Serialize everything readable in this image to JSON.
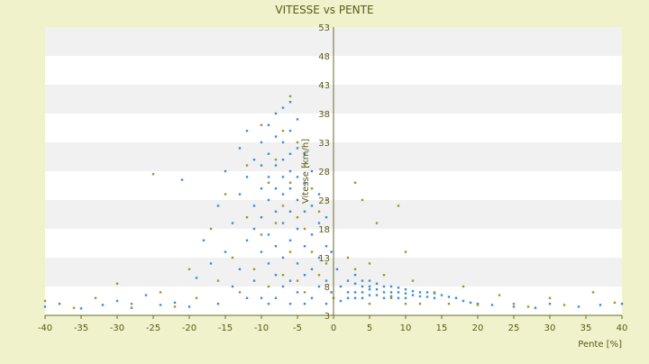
{
  "chart_data": {
    "type": "scatter",
    "title": "VITESSE vs PENTE",
    "xlabel": "Pente [%]",
    "ylabel": "Vitesse [km/h]",
    "xlim": [
      -40,
      40
    ],
    "ylim": [
      3,
      53
    ],
    "x_ticks": [
      -40,
      -35,
      -30,
      -25,
      -20,
      -15,
      -10,
      -5,
      0,
      5,
      10,
      15,
      20,
      25,
      30,
      35,
      40
    ],
    "y_ticks": [
      3,
      8,
      13,
      18,
      23,
      28,
      33,
      38,
      43,
      48,
      53
    ],
    "grid": "horizontal bands",
    "legend": "none",
    "colors": {
      "background": "#eff2cb",
      "plot_band_light": "#ffffff",
      "plot_band_dark": "#f1f1f1",
      "text": "#5a5a1a",
      "axis": "#6b6b2a",
      "series_blue": "#3a8fd8",
      "series_olive": "#9a9a2a"
    },
    "series": [
      {
        "color": "#3a8fd8",
        "points": [
          [
            -40,
            4.5
          ],
          [
            -38,
            5
          ],
          [
            -35,
            4.2
          ],
          [
            -32,
            4.8
          ],
          [
            -30,
            5.5
          ],
          [
            -28,
            4.3
          ],
          [
            -26,
            6.5
          ],
          [
            -24,
            4.8
          ],
          [
            -22,
            5.2
          ],
          [
            -21,
            26.5
          ],
          [
            -20,
            4.5
          ],
          [
            -19,
            9.5
          ],
          [
            -18,
            16
          ],
          [
            -17,
            12
          ],
          [
            -16,
            22
          ],
          [
            -16,
            5
          ],
          [
            -15,
            14
          ],
          [
            -15,
            28
          ],
          [
            -14,
            19
          ],
          [
            -14,
            8
          ],
          [
            -13,
            32
          ],
          [
            -13,
            24
          ],
          [
            -13,
            11
          ],
          [
            -12,
            35
          ],
          [
            -12,
            27
          ],
          [
            -12,
            16
          ],
          [
            -12,
            6
          ],
          [
            -11,
            30
          ],
          [
            -11,
            22
          ],
          [
            -11,
            18
          ],
          [
            -11,
            9
          ],
          [
            -10,
            33
          ],
          [
            -10,
            29
          ],
          [
            -10,
            25
          ],
          [
            -10,
            20
          ],
          [
            -10,
            14
          ],
          [
            -10,
            6
          ],
          [
            -9,
            36
          ],
          [
            -9,
            31
          ],
          [
            -9,
            27
          ],
          [
            -9,
            23
          ],
          [
            -9,
            17
          ],
          [
            -9,
            12
          ],
          [
            -9,
            5
          ],
          [
            -8,
            38
          ],
          [
            -8,
            34
          ],
          [
            -8,
            29
          ],
          [
            -8,
            25
          ],
          [
            -8,
            21
          ],
          [
            -8,
            15
          ],
          [
            -8,
            10
          ],
          [
            -8,
            6
          ],
          [
            -7,
            39
          ],
          [
            -7,
            33
          ],
          [
            -7,
            30
          ],
          [
            -7,
            27
          ],
          [
            -7,
            24
          ],
          [
            -7,
            19
          ],
          [
            -7,
            13
          ],
          [
            -7,
            8
          ],
          [
            -6,
            40
          ],
          [
            -6,
            35
          ],
          [
            -6,
            31
          ],
          [
            -6,
            28
          ],
          [
            -6,
            25
          ],
          [
            -6,
            21
          ],
          [
            -6,
            16
          ],
          [
            -6,
            9
          ],
          [
            -6,
            5
          ],
          [
            -5,
            37
          ],
          [
            -5,
            32
          ],
          [
            -5,
            27
          ],
          [
            -5,
            23
          ],
          [
            -5,
            18
          ],
          [
            -5,
            12
          ],
          [
            -5,
            7
          ],
          [
            -4,
            31
          ],
          [
            -4,
            26
          ],
          [
            -4,
            21
          ],
          [
            -4,
            15
          ],
          [
            -4,
            10
          ],
          [
            -4,
            5
          ],
          [
            -3,
            28
          ],
          [
            -3,
            22
          ],
          [
            -3,
            17
          ],
          [
            -3,
            11
          ],
          [
            -3,
            6
          ],
          [
            -2,
            24
          ],
          [
            -2,
            19
          ],
          [
            -2,
            13
          ],
          [
            -2,
            8
          ],
          [
            -1,
            20
          ],
          [
            -1,
            15
          ],
          [
            -1,
            9
          ],
          [
            -1,
            5
          ],
          [
            -0.3,
            14
          ],
          [
            -0.3,
            7
          ],
          [
            0.5,
            11
          ],
          [
            1,
            8
          ],
          [
            1,
            5.5
          ],
          [
            2,
            9
          ],
          [
            2,
            7
          ],
          [
            2,
            6
          ],
          [
            3,
            10
          ],
          [
            3,
            8.5
          ],
          [
            3,
            7
          ],
          [
            3,
            6
          ],
          [
            4,
            9
          ],
          [
            4,
            8
          ],
          [
            4,
            7
          ],
          [
            4,
            6
          ],
          [
            5,
            9
          ],
          [
            5,
            8
          ],
          [
            5,
            7.5
          ],
          [
            5,
            6.5
          ],
          [
            6,
            8.5
          ],
          [
            6,
            7.5
          ],
          [
            6,
            6.5
          ],
          [
            7,
            8
          ],
          [
            7,
            7
          ],
          [
            7,
            6
          ],
          [
            8,
            8
          ],
          [
            8,
            7
          ],
          [
            8,
            6.3
          ],
          [
            9,
            7.8
          ],
          [
            9,
            7
          ],
          [
            9,
            6
          ],
          [
            10,
            7.5
          ],
          [
            10,
            6.8
          ],
          [
            10,
            6
          ],
          [
            11,
            7.2
          ],
          [
            11,
            6.5
          ],
          [
            12,
            7
          ],
          [
            12,
            6.3
          ],
          [
            13,
            7
          ],
          [
            13,
            6.2
          ],
          [
            14,
            6.8
          ],
          [
            14,
            6
          ],
          [
            15,
            6.5
          ],
          [
            16,
            6.2
          ],
          [
            17,
            6
          ],
          [
            18,
            5.5
          ],
          [
            19,
            5.2
          ],
          [
            20,
            5
          ],
          [
            22,
            4.8
          ],
          [
            25,
            4.5
          ],
          [
            28,
            4.3
          ],
          [
            30,
            5
          ],
          [
            34,
            4.5
          ],
          [
            37,
            4.8
          ],
          [
            40,
            5
          ]
        ]
      },
      {
        "color": "#9a9a2a",
        "points": [
          [
            -40,
            5.5
          ],
          [
            -36,
            4.3
          ],
          [
            -33,
            6
          ],
          [
            -30,
            8.5
          ],
          [
            -28,
            5
          ],
          [
            -25,
            27.5
          ],
          [
            -24,
            7
          ],
          [
            -22,
            4.5
          ],
          [
            -20,
            11
          ],
          [
            -19,
            6
          ],
          [
            -17,
            18
          ],
          [
            -16,
            9
          ],
          [
            -15,
            24
          ],
          [
            -14,
            13
          ],
          [
            -13,
            7
          ],
          [
            -12,
            29
          ],
          [
            -12,
            20
          ],
          [
            -11,
            11
          ],
          [
            -10,
            36
          ],
          [
            -10,
            17
          ],
          [
            -9,
            26
          ],
          [
            -9,
            8
          ],
          [
            -8,
            30
          ],
          [
            -8,
            19
          ],
          [
            -7,
            35
          ],
          [
            -7,
            22
          ],
          [
            -7,
            10
          ],
          [
            -6,
            41
          ],
          [
            -6,
            26
          ],
          [
            -6,
            14
          ],
          [
            -5,
            33
          ],
          [
            -5,
            20
          ],
          [
            -5,
            9
          ],
          [
            -4,
            29
          ],
          [
            -4,
            18
          ],
          [
            -4,
            7
          ],
          [
            -3,
            25
          ],
          [
            -3,
            14
          ],
          [
            -2,
            21
          ],
          [
            -2,
            10
          ],
          [
            -1,
            23
          ],
          [
            -1,
            12
          ],
          [
            0,
            6
          ],
          [
            2,
            13
          ],
          [
            3,
            26
          ],
          [
            3,
            11
          ],
          [
            4,
            23
          ],
          [
            5,
            12
          ],
          [
            5,
            5
          ],
          [
            6,
            19
          ],
          [
            7,
            10
          ],
          [
            8,
            6
          ],
          [
            9,
            22
          ],
          [
            10,
            14
          ],
          [
            10,
            5
          ],
          [
            11,
            9
          ],
          [
            12,
            5
          ],
          [
            14,
            7
          ],
          [
            16,
            5
          ],
          [
            18,
            8
          ],
          [
            20,
            4.8
          ],
          [
            23,
            6.5
          ],
          [
            25,
            5
          ],
          [
            27,
            4.5
          ],
          [
            30,
            6
          ],
          [
            32,
            4.8
          ],
          [
            36,
            7
          ],
          [
            39,
            5.2
          ]
        ]
      }
    ]
  }
}
